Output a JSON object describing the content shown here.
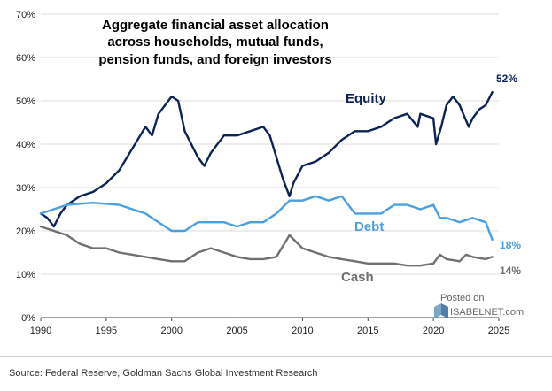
{
  "chart_data": {
    "type": "line",
    "title_lines": [
      "Aggregate financial asset allocation",
      "across households, mutual funds,",
      "pension funds, and foreign investors"
    ],
    "xlabel": "",
    "ylabel": "",
    "xlim": [
      1990,
      2025
    ],
    "ylim": [
      0,
      70
    ],
    "x_ticks": [
      1990,
      1995,
      2000,
      2005,
      2010,
      2015,
      2020,
      2025
    ],
    "y_ticks": [
      0,
      10,
      20,
      30,
      40,
      50,
      60,
      70
    ],
    "y_tick_labels": [
      "0%",
      "10%",
      "20%",
      "30%",
      "40%",
      "50%",
      "60%",
      "70%"
    ],
    "grid": "horizontal",
    "series": [
      {
        "name": "Equity",
        "color": "#0d2356",
        "end_label": "52%",
        "points": [
          [
            1990,
            24
          ],
          [
            1990.5,
            23
          ],
          [
            1991,
            21
          ],
          [
            1991.5,
            24
          ],
          [
            1992,
            26
          ],
          [
            1993,
            28
          ],
          [
            1994,
            29
          ],
          [
            1995,
            31
          ],
          [
            1996,
            34
          ],
          [
            1997,
            39
          ],
          [
            1998,
            44
          ],
          [
            1998.5,
            42
          ],
          [
            1999,
            47
          ],
          [
            2000,
            51
          ],
          [
            2000.5,
            50
          ],
          [
            2001,
            43
          ],
          [
            2002,
            37
          ],
          [
            2002.5,
            35
          ],
          [
            2003,
            38
          ],
          [
            2004,
            42
          ],
          [
            2005,
            42
          ],
          [
            2006,
            43
          ],
          [
            2007,
            44
          ],
          [
            2007.5,
            42
          ],
          [
            2008,
            37
          ],
          [
            2008.5,
            32
          ],
          [
            2009,
            28
          ],
          [
            2009.3,
            31
          ],
          [
            2010,
            35
          ],
          [
            2011,
            36
          ],
          [
            2012,
            38
          ],
          [
            2013,
            41
          ],
          [
            2014,
            43
          ],
          [
            2015,
            43
          ],
          [
            2016,
            44
          ],
          [
            2017,
            46
          ],
          [
            2018,
            47
          ],
          [
            2018.8,
            44
          ],
          [
            2019,
            47
          ],
          [
            2020,
            46
          ],
          [
            2020.2,
            40
          ],
          [
            2020.6,
            44
          ],
          [
            2021,
            49
          ],
          [
            2021.5,
            51
          ],
          [
            2022,
            49
          ],
          [
            2022.7,
            44
          ],
          [
            2023,
            46
          ],
          [
            2023.5,
            48
          ],
          [
            2024,
            49
          ],
          [
            2024.5,
            52
          ]
        ]
      },
      {
        "name": "Debt",
        "color": "#4a9fdf",
        "end_label": "18%",
        "points": [
          [
            1990,
            24
          ],
          [
            1992,
            26
          ],
          [
            1994,
            26.5
          ],
          [
            1996,
            26
          ],
          [
            1998,
            24
          ],
          [
            1999,
            22
          ],
          [
            2000,
            20
          ],
          [
            2001,
            20
          ],
          [
            2002,
            22
          ],
          [
            2003,
            22
          ],
          [
            2004,
            22
          ],
          [
            2005,
            21
          ],
          [
            2006,
            22
          ],
          [
            2007,
            22
          ],
          [
            2008,
            24
          ],
          [
            2009,
            27
          ],
          [
            2010,
            27
          ],
          [
            2011,
            28
          ],
          [
            2012,
            27
          ],
          [
            2013,
            28
          ],
          [
            2014,
            24
          ],
          [
            2015,
            24
          ],
          [
            2016,
            24
          ],
          [
            2017,
            26
          ],
          [
            2018,
            26
          ],
          [
            2019,
            25
          ],
          [
            2020,
            26
          ],
          [
            2020.5,
            23
          ],
          [
            2021,
            23
          ],
          [
            2022,
            22
          ],
          [
            2023,
            23
          ],
          [
            2024,
            22
          ],
          [
            2024.5,
            18
          ]
        ]
      },
      {
        "name": "Cash",
        "color": "#707070",
        "end_label": "14%",
        "points": [
          [
            1990,
            21
          ],
          [
            1991,
            20
          ],
          [
            1992,
            19
          ],
          [
            1993,
            17
          ],
          [
            1994,
            16
          ],
          [
            1995,
            16
          ],
          [
            1996,
            15
          ],
          [
            1997,
            14.5
          ],
          [
            1998,
            14
          ],
          [
            1999,
            13.5
          ],
          [
            2000,
            13
          ],
          [
            2001,
            13
          ],
          [
            2002,
            15
          ],
          [
            2003,
            16
          ],
          [
            2004,
            15
          ],
          [
            2005,
            14
          ],
          [
            2006,
            13.5
          ],
          [
            2007,
            13.5
          ],
          [
            2008,
            14
          ],
          [
            2009,
            19
          ],
          [
            2010,
            16
          ],
          [
            2011,
            15
          ],
          [
            2012,
            14
          ],
          [
            2013,
            13.5
          ],
          [
            2014,
            13
          ],
          [
            2015,
            12.5
          ],
          [
            2016,
            12.5
          ],
          [
            2017,
            12.5
          ],
          [
            2018,
            12
          ],
          [
            2019,
            12
          ],
          [
            2020,
            12.5
          ],
          [
            2020.5,
            14.5
          ],
          [
            2021,
            13.5
          ],
          [
            2022,
            13
          ],
          [
            2022.5,
            14.5
          ],
          [
            2023,
            14
          ],
          [
            2024,
            13.5
          ],
          [
            2024.5,
            14
          ]
        ]
      }
    ],
    "annotations": [
      "Posted on",
      "ISABELNET.com"
    ],
    "source": "Source: Federal Reserve, Goldman Sachs Global Investment Research"
  }
}
